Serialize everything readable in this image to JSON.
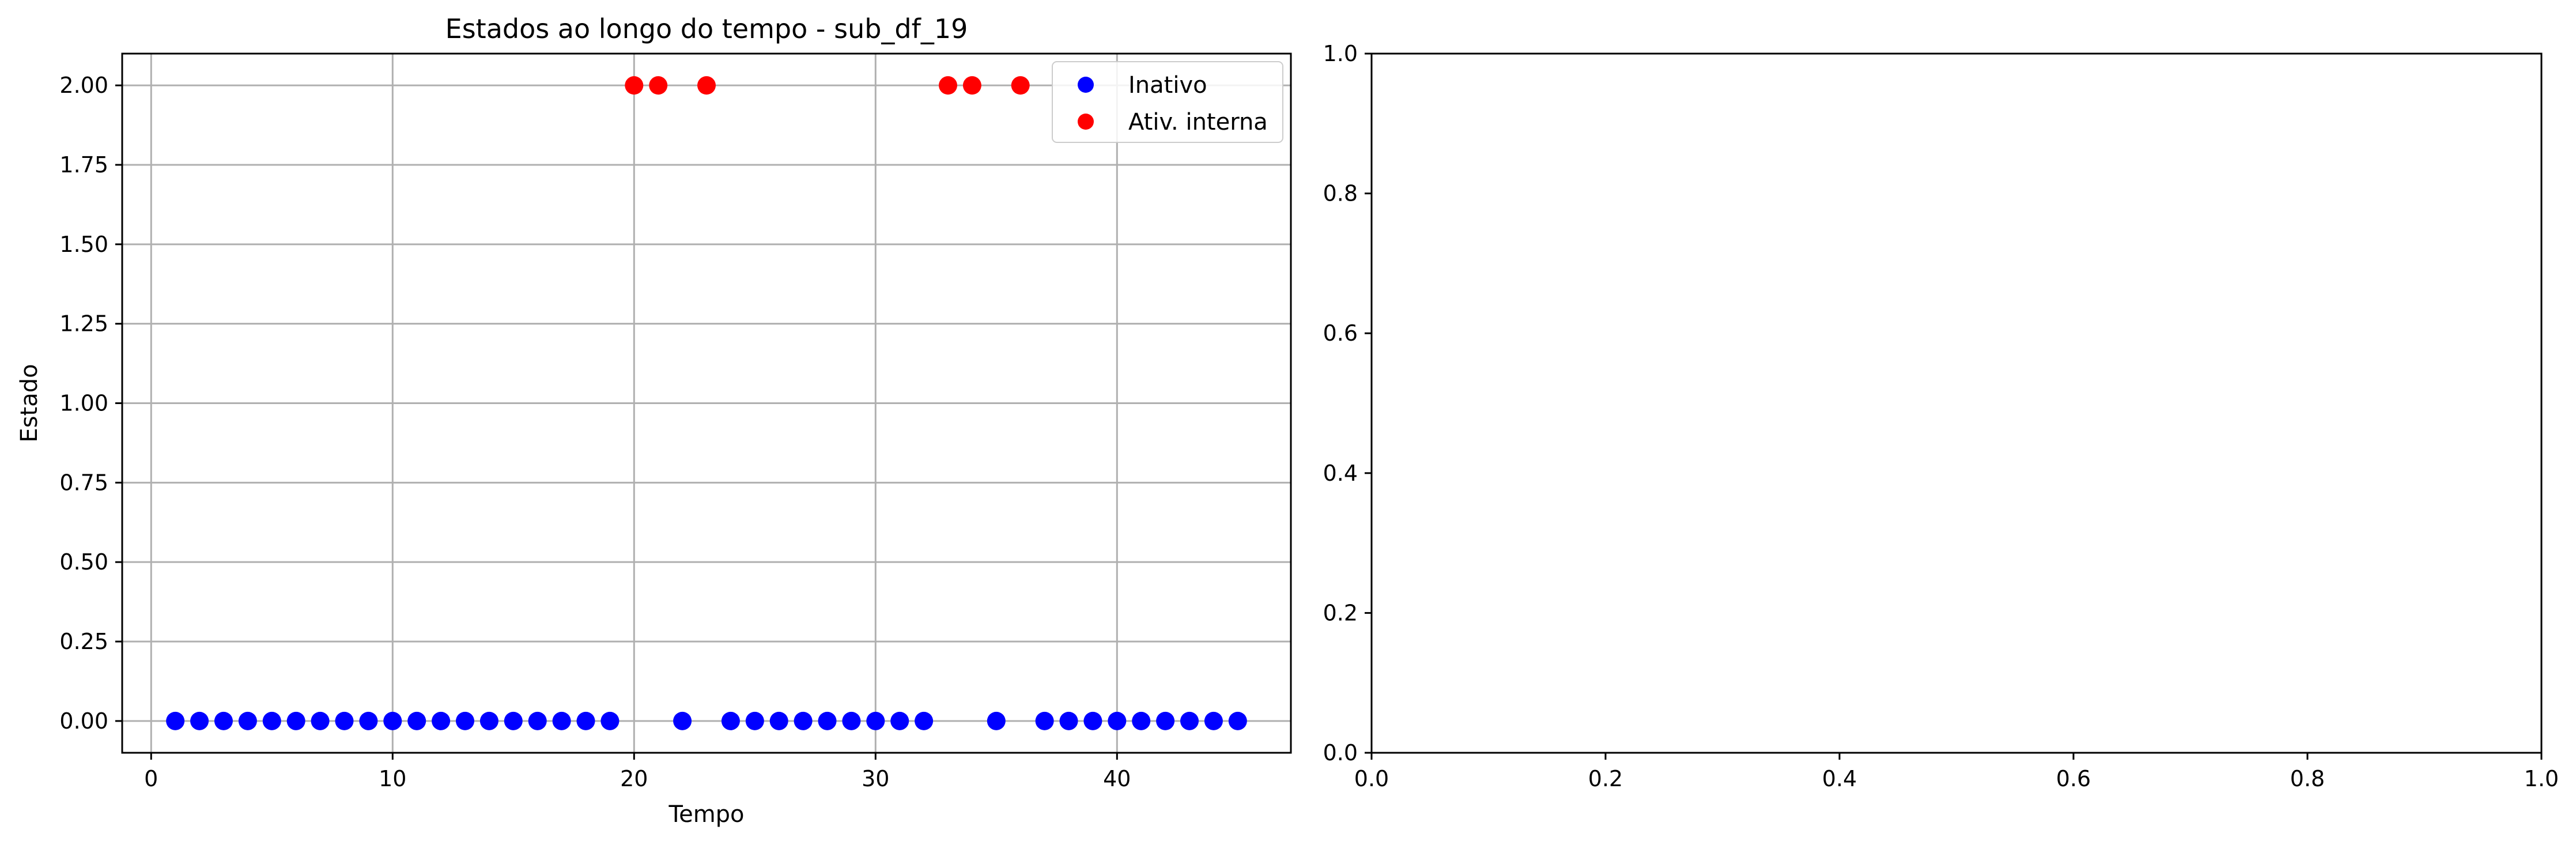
{
  "chart_data": [
    {
      "type": "scatter",
      "title": "Estados ao longo do tempo - sub_df_19",
      "xlabel": "Tempo",
      "ylabel": "Estado",
      "xlim": [
        -1.2,
        47.2
      ],
      "ylim": [
        -0.1,
        2.1
      ],
      "xticks": [
        0,
        10,
        20,
        30,
        40
      ],
      "xtick_labels": [
        "0",
        "10",
        "20",
        "30",
        "40"
      ],
      "yticks": [
        0,
        0.25,
        0.5,
        0.75,
        1.0,
        1.25,
        1.5,
        1.75,
        2.0
      ],
      "ytick_labels": [
        "0.00",
        "0.25",
        "0.50",
        "0.75",
        "1.00",
        "1.25",
        "1.50",
        "1.75",
        "2.00"
      ],
      "grid": true,
      "legend_position": "top-right",
      "series": [
        {
          "name": "Inativo",
          "color": "#0000ff",
          "x": [
            1,
            2,
            3,
            4,
            5,
            6,
            7,
            8,
            9,
            10,
            11,
            12,
            13,
            14,
            15,
            16,
            17,
            18,
            19,
            22,
            24,
            25,
            26,
            27,
            28,
            29,
            30,
            31,
            32,
            35,
            37,
            38,
            39,
            40,
            41,
            42,
            43,
            44,
            45
          ],
          "y": [
            0,
            0,
            0,
            0,
            0,
            0,
            0,
            0,
            0,
            0,
            0,
            0,
            0,
            0,
            0,
            0,
            0,
            0,
            0,
            0,
            0,
            0,
            0,
            0,
            0,
            0,
            0,
            0,
            0,
            0,
            0,
            0,
            0,
            0,
            0,
            0,
            0,
            0,
            0
          ]
        },
        {
          "name": "Ativ. interna",
          "color": "#ff0000",
          "x": [
            20,
            21,
            23,
            33,
            34,
            36
          ],
          "y": [
            2,
            2,
            2,
            2,
            2,
            2
          ]
        }
      ]
    },
    {
      "type": "scatter",
      "title": "",
      "xlabel": "",
      "ylabel": "",
      "xlim": [
        0,
        1
      ],
      "ylim": [
        0,
        1
      ],
      "xticks": [
        0,
        0.2,
        0.4,
        0.6,
        0.8,
        1.0
      ],
      "xtick_labels": [
        "0.0",
        "0.2",
        "0.4",
        "0.6",
        "0.8",
        "1.0"
      ],
      "yticks": [
        0,
        0.2,
        0.4,
        0.6,
        0.8,
        1.0
      ],
      "ytick_labels": [
        "0.0",
        "0.2",
        "0.4",
        "0.6",
        "0.8",
        "1.0"
      ],
      "grid": false,
      "series": []
    }
  ]
}
